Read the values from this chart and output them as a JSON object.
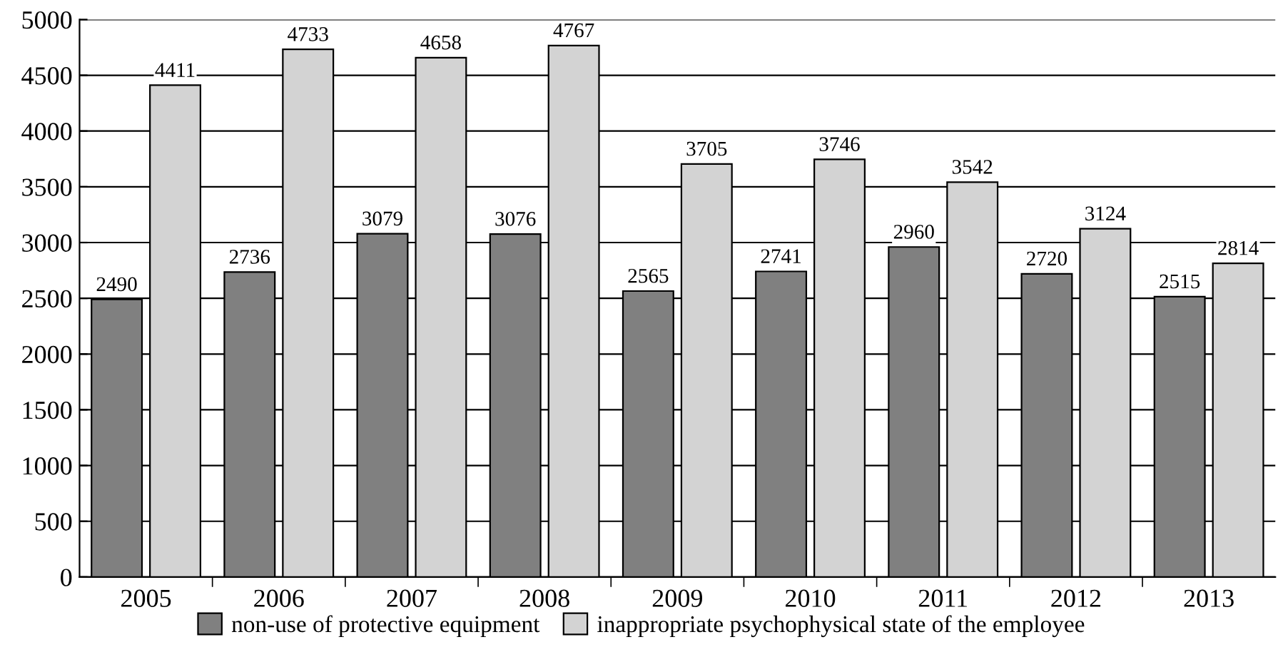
{
  "chart_data": {
    "type": "bar",
    "categories": [
      "2005",
      "2006",
      "2007",
      "2008",
      "2009",
      "2010",
      "2011",
      "2012",
      "2013"
    ],
    "series": [
      {
        "name": "non-use of protective equipment",
        "color": "#808080",
        "values": [
          2490,
          2736,
          3079,
          3076,
          2565,
          2741,
          2960,
          2720,
          2515
        ]
      },
      {
        "name": "inappropriate psychophysical state of the employee",
        "color": "#d3d3d3",
        "values": [
          4411,
          4733,
          4658,
          4767,
          3705,
          3746,
          3542,
          3124,
          2814
        ]
      }
    ],
    "ylim": [
      0,
      5000
    ],
    "yticks": [
      0,
      500,
      1000,
      1500,
      2000,
      2500,
      3000,
      3500,
      4000,
      4500,
      5000
    ],
    "grid": "y",
    "legend": "bottom",
    "data_labels": true
  }
}
